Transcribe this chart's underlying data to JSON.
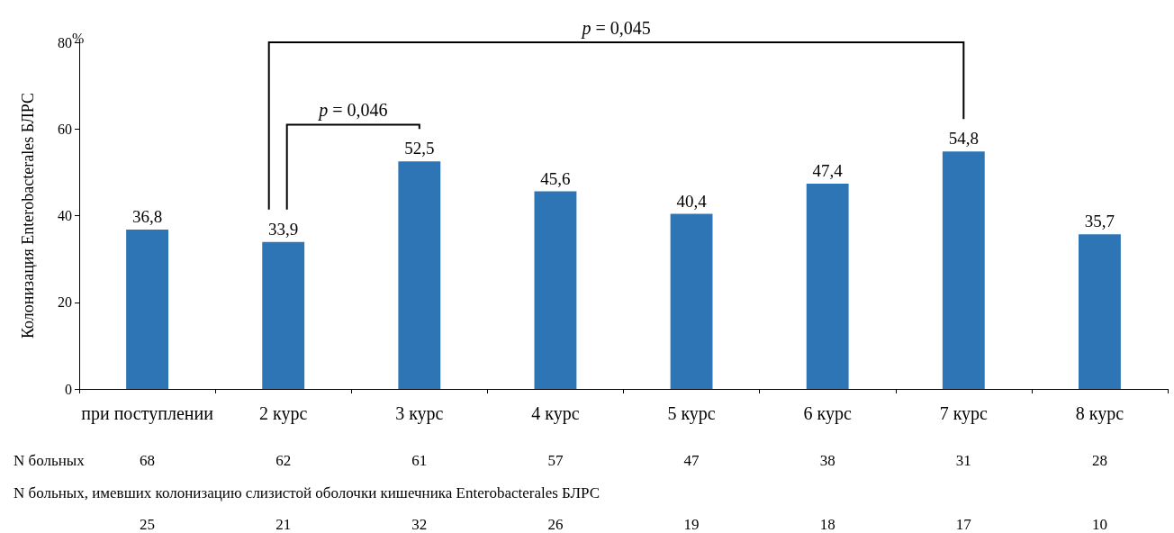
{
  "chart_data": {
    "type": "bar",
    "categories": [
      "при поступлении",
      "2 курс",
      "3 курс",
      "4 курс",
      "5 курс",
      "6 курс",
      "7 курс",
      "8 курс"
    ],
    "values": [
      36.8,
      33.9,
      52.5,
      45.6,
      40.4,
      47.4,
      54.8,
      35.7
    ],
    "value_labels": [
      "36,8",
      "33,9",
      "52,5",
      "45,6",
      "40,4",
      "47,4",
      "54,8",
      "35,7"
    ],
    "color": "#2e75b6",
    "ylabel": "Колонизация Enterobacterales БЛРС",
    "ylim": [
      0,
      80
    ],
    "yticks": [
      0,
      20,
      40,
      60,
      80
    ],
    "grid": false,
    "annotations": [
      "%",
      "p = 0,046",
      "p = 0,045",
      "N больных",
      "N больных, имевших колонизацию слизистой оболочки кишечника Enterobacterales БЛРС",
      "68",
      "62",
      "61",
      "57",
      "47",
      "38",
      "31",
      "28",
      "25",
      "21",
      "32",
      "26",
      "19",
      "18",
      "17",
      "10"
    ]
  }
}
